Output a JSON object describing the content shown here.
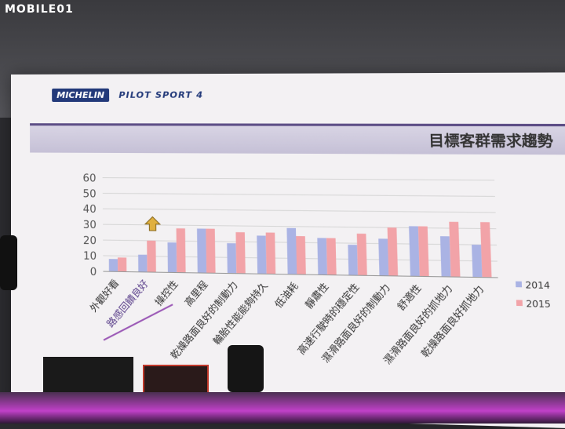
{
  "watermark": "MOBILE01",
  "brand": {
    "logo": "MICHELIN",
    "product": "PILOT SPORT 4"
  },
  "slide_title": "目標客群需求趨勢",
  "colors": {
    "s2014": "#aab3e4",
    "s2015": "#f2a3a8",
    "grid": "#d6d6d6",
    "axis_text": "#555555",
    "title_bar": "#c9c4da"
  },
  "chart_data": {
    "type": "bar",
    "categories": [
      "外觀好看",
      "路感回饋良好",
      "操控性",
      "高里程",
      "乾燥路面良好的制動力",
      "輪胎性能能夠持久",
      "低油耗",
      "靜肅性",
      "高速行駛時的穩定性",
      "濕滑路面良好的制動力",
      "舒適性",
      "濕滑路面良好的抓地力",
      "乾燥路面良好抓地力"
    ],
    "series": [
      {
        "name": "2014",
        "values": [
          8,
          11,
          19,
          28,
          19,
          24,
          29,
          23,
          19,
          23,
          31,
          25,
          20
        ]
      },
      {
        "name": "2015",
        "values": [
          9,
          20,
          28,
          28,
          26,
          26,
          24,
          23,
          26,
          30,
          31,
          34,
          34
        ]
      }
    ],
    "ylim": [
      0,
      60
    ],
    "yticks": [
      "0",
      "10",
      "20",
      "30",
      "40",
      "50",
      "60"
    ],
    "grid": true,
    "legend": "right",
    "annotation": "up-arrow over 路感回饋良好"
  }
}
